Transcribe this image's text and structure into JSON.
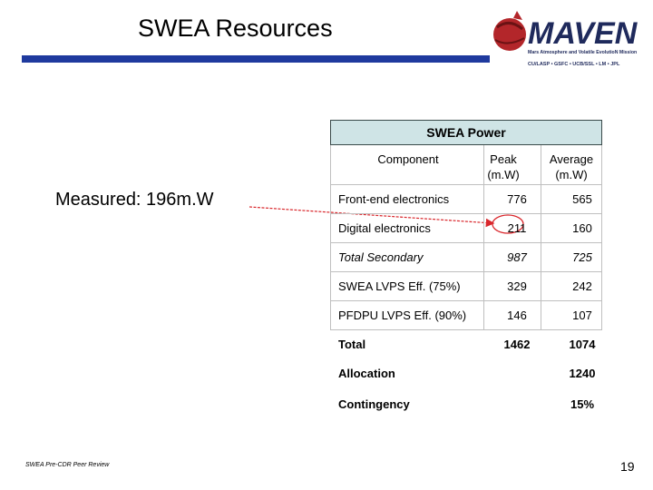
{
  "slide": {
    "title": "SWEA Resources",
    "measured_note": "Measured: 196m.W",
    "footer": "SWEA Pre-CDR Peer Review",
    "page_number": "19"
  },
  "logo": {
    "wordmark": "MAVEN",
    "tagline": "Mars Atmosphere and Volatile EvolutioN Mission",
    "partners": "CU/LASP • GSFC • UCB/SSL • LM • JPL"
  },
  "table": {
    "title": "SWEA Power",
    "headers": {
      "component": "Component",
      "peak": "Peak (m.W)",
      "average": "Average (m.W)"
    },
    "rows": [
      {
        "component": "Front-end electronics",
        "peak": "776",
        "average": "565",
        "style": "normal"
      },
      {
        "component": "Digital electronics",
        "peak": "211",
        "average": "160",
        "style": "normal"
      },
      {
        "component": "Total Secondary",
        "peak": "987",
        "average": "725",
        "style": "italic"
      },
      {
        "component": "SWEA LVPS Eff. (75%)",
        "peak": "329",
        "average": "242",
        "style": "normal"
      },
      {
        "component": "PFDPU LVPS Eff. (90%)",
        "peak": "146",
        "average": "107",
        "style": "normal"
      },
      {
        "component": "Total",
        "peak": "1462",
        "average": "1074",
        "style": "bold"
      }
    ],
    "allocation": {
      "label": "Allocation",
      "value": "1240"
    },
    "contingency": {
      "label": "Contingency",
      "value": "15%"
    }
  },
  "colors": {
    "title_bar": "#1f3a9e",
    "header_fill": "#cfe4e6",
    "arrow": "#d9262b",
    "logo_red": "#b3262a",
    "logo_navy": "#1f2a5c"
  }
}
